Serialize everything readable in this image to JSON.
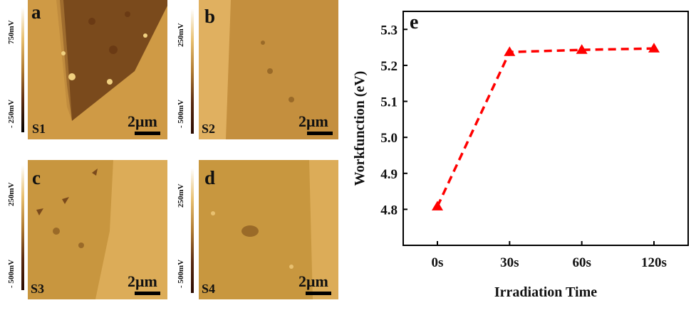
{
  "panels": [
    {
      "letter": "a",
      "sample": "S1",
      "cbar_top": "750mV",
      "cbar_bottom": "- 250mV",
      "scale": "2μm"
    },
    {
      "letter": "b",
      "sample": "S2",
      "cbar_top": "250mV",
      "cbar_bottom": "- 500mV",
      "scale": "2μm"
    },
    {
      "letter": "c",
      "sample": "S3",
      "cbar_top": "250mV",
      "cbar_bottom": "- 500mV",
      "scale": "2μm"
    },
    {
      "letter": "d",
      "sample": "S4",
      "cbar_top": "250mV",
      "cbar_bottom": "- 500mV",
      "scale": "2μm"
    }
  ],
  "colors": {
    "line": "#ff0000",
    "map_light": "#d8a64c",
    "map_dark": "#5a3310"
  },
  "chart_data": {
    "type": "line",
    "panel_label": "e",
    "categories": [
      "0s",
      "30s",
      "60s",
      "120s"
    ],
    "values": [
      4.808,
      5.237,
      5.243,
      5.247
    ],
    "xlabel": "Irradiation Time",
    "ylabel": "Workfunction (eV)",
    "ylim": [
      4.7,
      5.35
    ],
    "yticks": [
      "4.8",
      "4.9",
      "5.0",
      "5.1",
      "5.2",
      "5.3"
    ],
    "marker": "triangle",
    "line_style": "dashed"
  }
}
